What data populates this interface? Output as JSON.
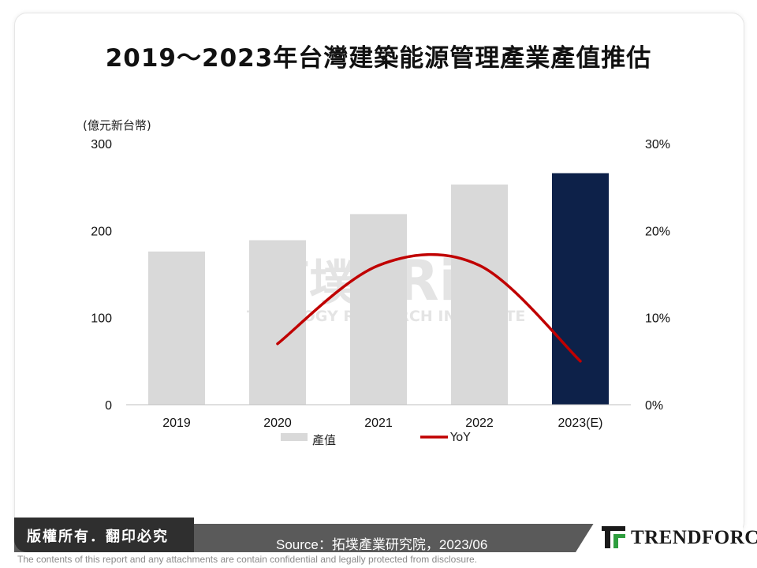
{
  "title": "2019～2023年台灣建築能源管理產業產值推估",
  "unit_label": "(億元新台幣)",
  "watermark": {
    "logo_cn": "拓墣",
    "logo_en": "TRi",
    "subtitle": "TOPOLOGY RESEARCH INSTITUTE"
  },
  "chart_data": {
    "type": "bar",
    "categories": [
      "2019",
      "2020",
      "2021",
      "2022",
      "2023(E)"
    ],
    "series": [
      {
        "name": "產值",
        "type": "bar",
        "axis": "left",
        "values": [
          176,
          189,
          219,
          253,
          266
        ]
      },
      {
        "name": "YoY",
        "type": "line",
        "axis": "right",
        "values": [
          null,
          7,
          16,
          16,
          5
        ]
      }
    ],
    "left_axis": {
      "ticks": [
        "0",
        "100",
        "200",
        "300"
      ],
      "range": [
        0,
        300
      ]
    },
    "right_axis": {
      "ticks": [
        "0%",
        "10%",
        "20%",
        "30%"
      ],
      "range": [
        0,
        30
      ]
    },
    "colors": {
      "bar": "#d9d9d9",
      "bar_highlight": "#0d2149",
      "line": "#c00000"
    },
    "legend": [
      "產值",
      "YoY"
    ]
  },
  "footer": {
    "rights": "版權所有．翻印必究",
    "source": "Source：拓墣產業研究院，2023/06",
    "brand": "TRENDFORCE",
    "disclaimer": "The contents of this report and any attachments are contain confidential and legally protected from disclosure."
  }
}
